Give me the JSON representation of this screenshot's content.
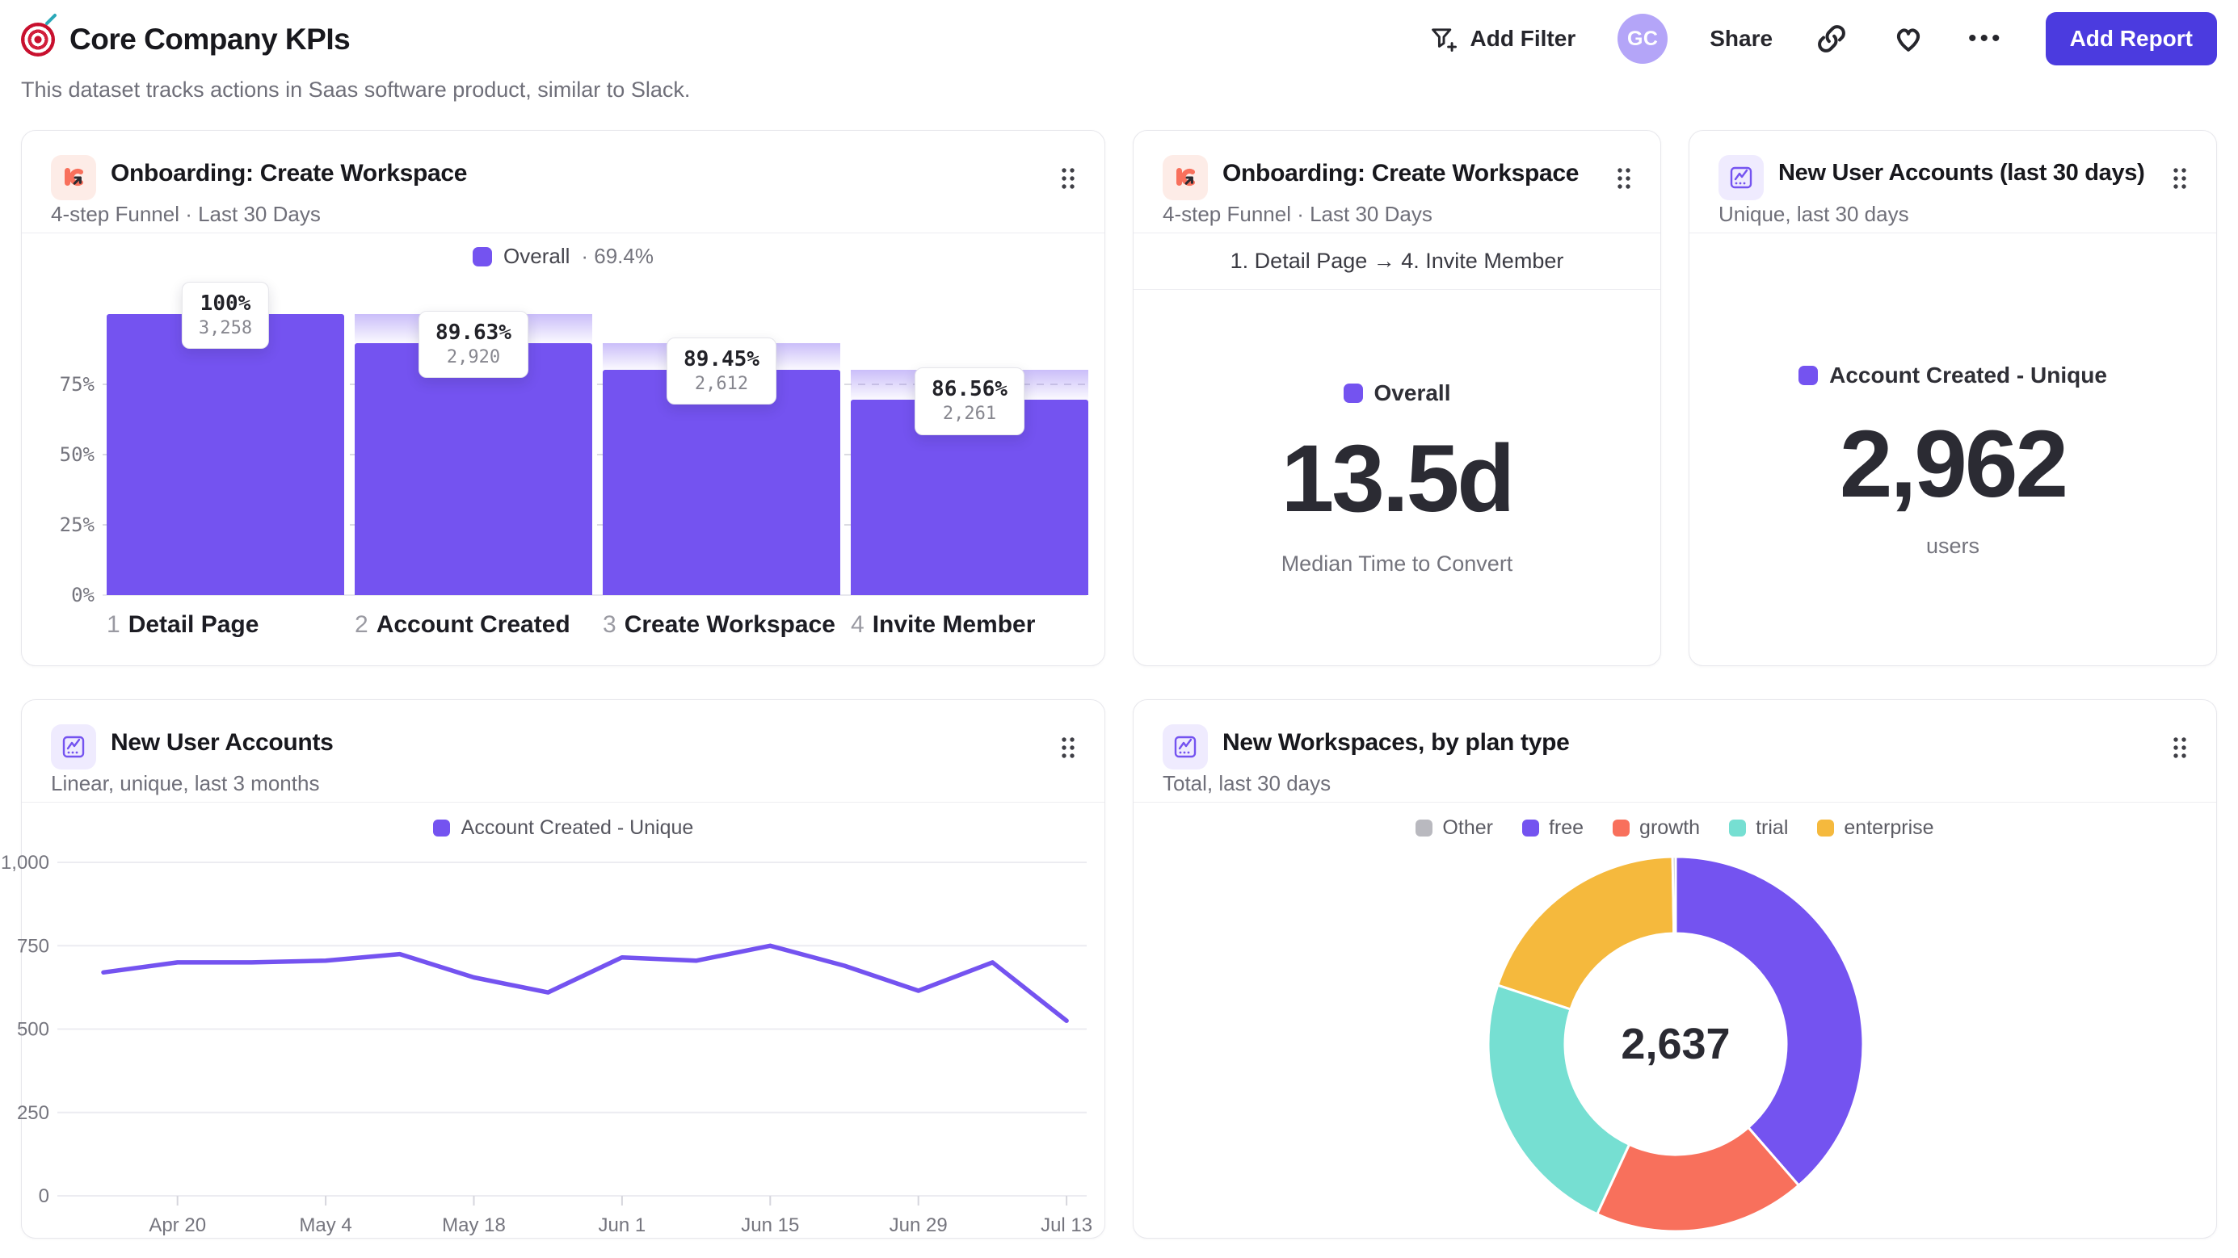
{
  "header": {
    "title": "Core Company KPIs",
    "subtitle": "This dataset tracks actions in Saas software product, similar to Slack.",
    "add_filter_label": "Add Filter",
    "avatar_initials": "GC",
    "share_label": "Share",
    "more_label": "•••",
    "add_report_label": "Add Report"
  },
  "colors": {
    "purple": "#7453f0",
    "coral": "#f8705c",
    "teal": "#76dfd2",
    "yellow": "#f5b93d",
    "gray_other": "#b9b9bf",
    "button": "#4b3bdf",
    "avatar_bg": "#b4a5f8"
  },
  "cards": {
    "funnel": {
      "title": "Onboarding: Create Workspace",
      "subtitle": "4-step Funnel · Last 30 Days",
      "legend_label": "Overall",
      "legend_value": "· 69.4%"
    },
    "median": {
      "title": "Onboarding: Create Workspace",
      "subtitle": "4-step Funnel · Last 30 Days",
      "range": "1. Detail Page → 4. Invite Member",
      "legend_label": "Overall",
      "value": "13.5d",
      "caption": "Median Time to Convert"
    },
    "accounts30": {
      "title": "New User Accounts (last 30 days)",
      "subtitle": "Unique, last 30 days",
      "legend_label": "Account Created - Unique",
      "value": "2,962",
      "caption": "users"
    },
    "trend": {
      "title": "New User Accounts",
      "subtitle": "Linear, unique, last 3 months",
      "legend_label": "Account Created - Unique"
    },
    "workspaces": {
      "title": "New Workspaces, by plan type",
      "subtitle": "Total, last 30 days",
      "center_value": "2,637"
    }
  },
  "chart_data": [
    {
      "type": "bar",
      "subtype": "funnel",
      "title": "Onboarding: Create Workspace",
      "legend": "Overall · 69.4%",
      "overall_conversion_pct": 69.4,
      "steps": [
        {
          "n": "1",
          "label": "Detail Page"
        },
        {
          "n": "2",
          "label": "Account Created"
        },
        {
          "n": "3",
          "label": "Create Workspace"
        },
        {
          "n": "4",
          "label": "Invite Member"
        }
      ],
      "counts": [
        3258,
        2920,
        2612,
        2261
      ],
      "counts_fmt": [
        "3,258",
        "2,920",
        "2,612",
        "2,261"
      ],
      "step_conversion_labels": [
        "100%",
        "89.63%",
        "89.45%",
        "86.56%"
      ],
      "pct_of_total": [
        100,
        89.63,
        80.17,
        69.4
      ],
      "yticks": [
        {
          "v": 75,
          "label": "75%"
        },
        {
          "v": 50,
          "label": "50%"
        },
        {
          "v": 25,
          "label": "25%"
        },
        {
          "v": 0,
          "label": "0%"
        }
      ],
      "ylim": [
        0,
        100
      ]
    },
    {
      "type": "line",
      "title": "New User Accounts",
      "series": [
        {
          "name": "Account Created - Unique",
          "values": [
            670,
            700,
            700,
            705,
            725,
            655,
            610,
            715,
            705,
            750,
            690,
            615,
            700,
            525
          ]
        }
      ],
      "x_tick_labels": [
        "Apr 20",
        "May 4",
        "May 18",
        "Jun 1",
        "Jun 15",
        "Jun 29",
        "Jul 13"
      ],
      "x_tick_indices": [
        1,
        3,
        5,
        7,
        9,
        11,
        13
      ],
      "yticks": [
        {
          "v": 0,
          "label": "0"
        },
        {
          "v": 250,
          "label": "250"
        },
        {
          "v": 500,
          "label": "500"
        },
        {
          "v": 750,
          "label": "750"
        },
        {
          "v": 1000,
          "label": "1,000"
        }
      ],
      "ylim": [
        0,
        1000
      ],
      "grid": true,
      "legend_position": "top"
    },
    {
      "type": "pie",
      "subtype": "donut",
      "title": "New Workspaces, by plan type",
      "total": 2637,
      "total_label": "2,637",
      "legend_order": [
        "Other",
        "free",
        "growth",
        "trial",
        "enterprise"
      ],
      "segments": [
        {
          "label": "free",
          "value": 1018,
          "color": "#7453f0"
        },
        {
          "label": "growth",
          "value": 482,
          "color": "#f8705c"
        },
        {
          "label": "trial",
          "value": 612,
          "color": "#76dfd2"
        },
        {
          "label": "enterprise",
          "value": 518,
          "color": "#f5b93d"
        },
        {
          "label": "Other",
          "value": 7,
          "color": "#b9b9bf"
        }
      ],
      "start_angle_deg": 0,
      "direction": "clockwise"
    }
  ]
}
